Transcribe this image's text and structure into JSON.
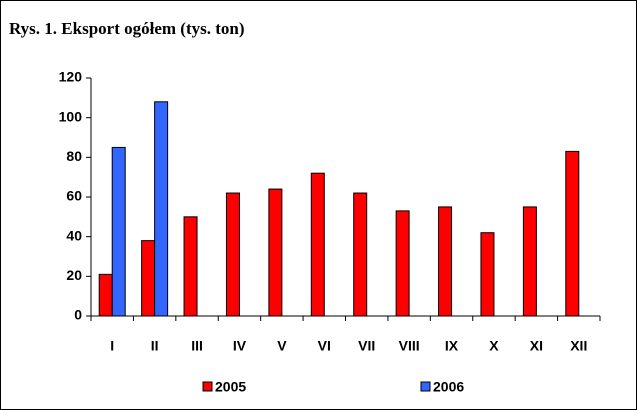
{
  "chart_data": {
    "type": "bar",
    "title": "Rys. 1. Eksport ogółem (tys. ton)",
    "categories": [
      "I",
      "II",
      "III",
      "IV",
      "V",
      "VI",
      "VII",
      "VIII",
      "IX",
      "X",
      "XI",
      "XII"
    ],
    "series": [
      {
        "name": "2005",
        "color": "#ff0000",
        "values": [
          21,
          38,
          50,
          62,
          64,
          72,
          62,
          53,
          55,
          42,
          55,
          83
        ]
      },
      {
        "name": "2006",
        "color": "#3366ff",
        "values": [
          85,
          108,
          null,
          null,
          null,
          null,
          null,
          null,
          null,
          null,
          null,
          null
        ]
      }
    ],
    "ylim": [
      0,
      120
    ],
    "yticks": [
      0,
      20,
      40,
      60,
      80,
      100,
      120
    ],
    "grid": false,
    "legend": "bottom"
  }
}
